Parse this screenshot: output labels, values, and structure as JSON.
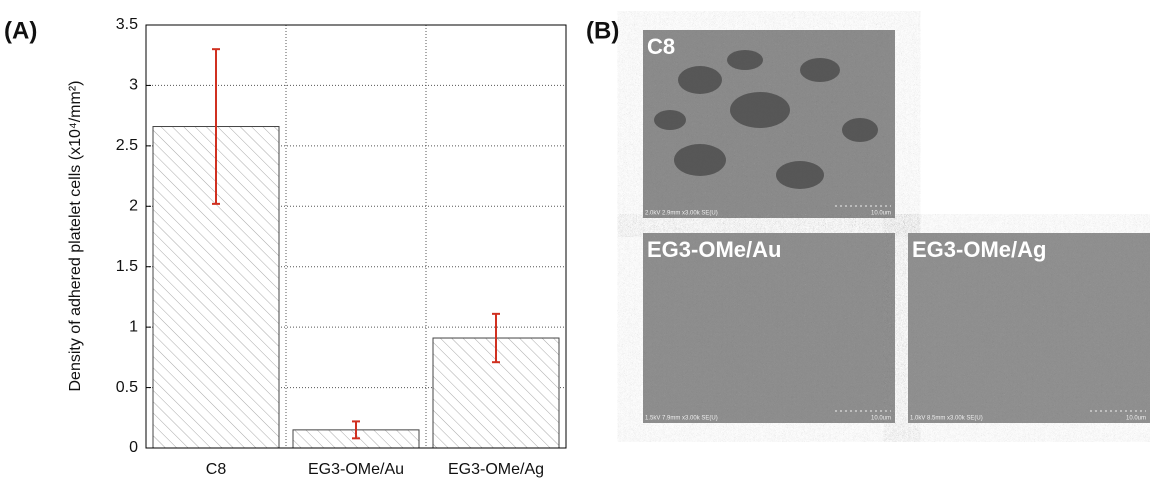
{
  "panel_a_label": "(A)",
  "chart_data": {
    "type": "bar",
    "ylabel": "Density of adhered platelet cells (x10⁴/mm²)",
    "categories": [
      "C8",
      "EG3-OMe/Au",
      "EG3-OMe/Ag"
    ],
    "values": [
      2.66,
      0.15,
      0.91
    ],
    "errors": [
      0.64,
      0.07,
      0.2
    ],
    "color": "#999999",
    "error_color": "#d03020",
    "ylim": [
      0,
      3.5
    ],
    "yticks": [
      0,
      0.5,
      1,
      1.5,
      2,
      2.5,
      3,
      3.5
    ],
    "grid": true
  },
  "panel_b": {
    "label": "(B)",
    "images": [
      {
        "label": "C8",
        "info": "2.0kV 2.9mm x3.00k SE(U)",
        "scale": "10.0um"
      },
      {
        "label": "EG3-OMe/Au",
        "info": "1.5kV 7.9mm x3.00k SE(U)",
        "scale": "10.0um"
      },
      {
        "label": "EG3-OMe/Ag",
        "info": "1.0kV 8.5mm x3.00k SE(U)",
        "scale": "10.0um"
      }
    ]
  }
}
